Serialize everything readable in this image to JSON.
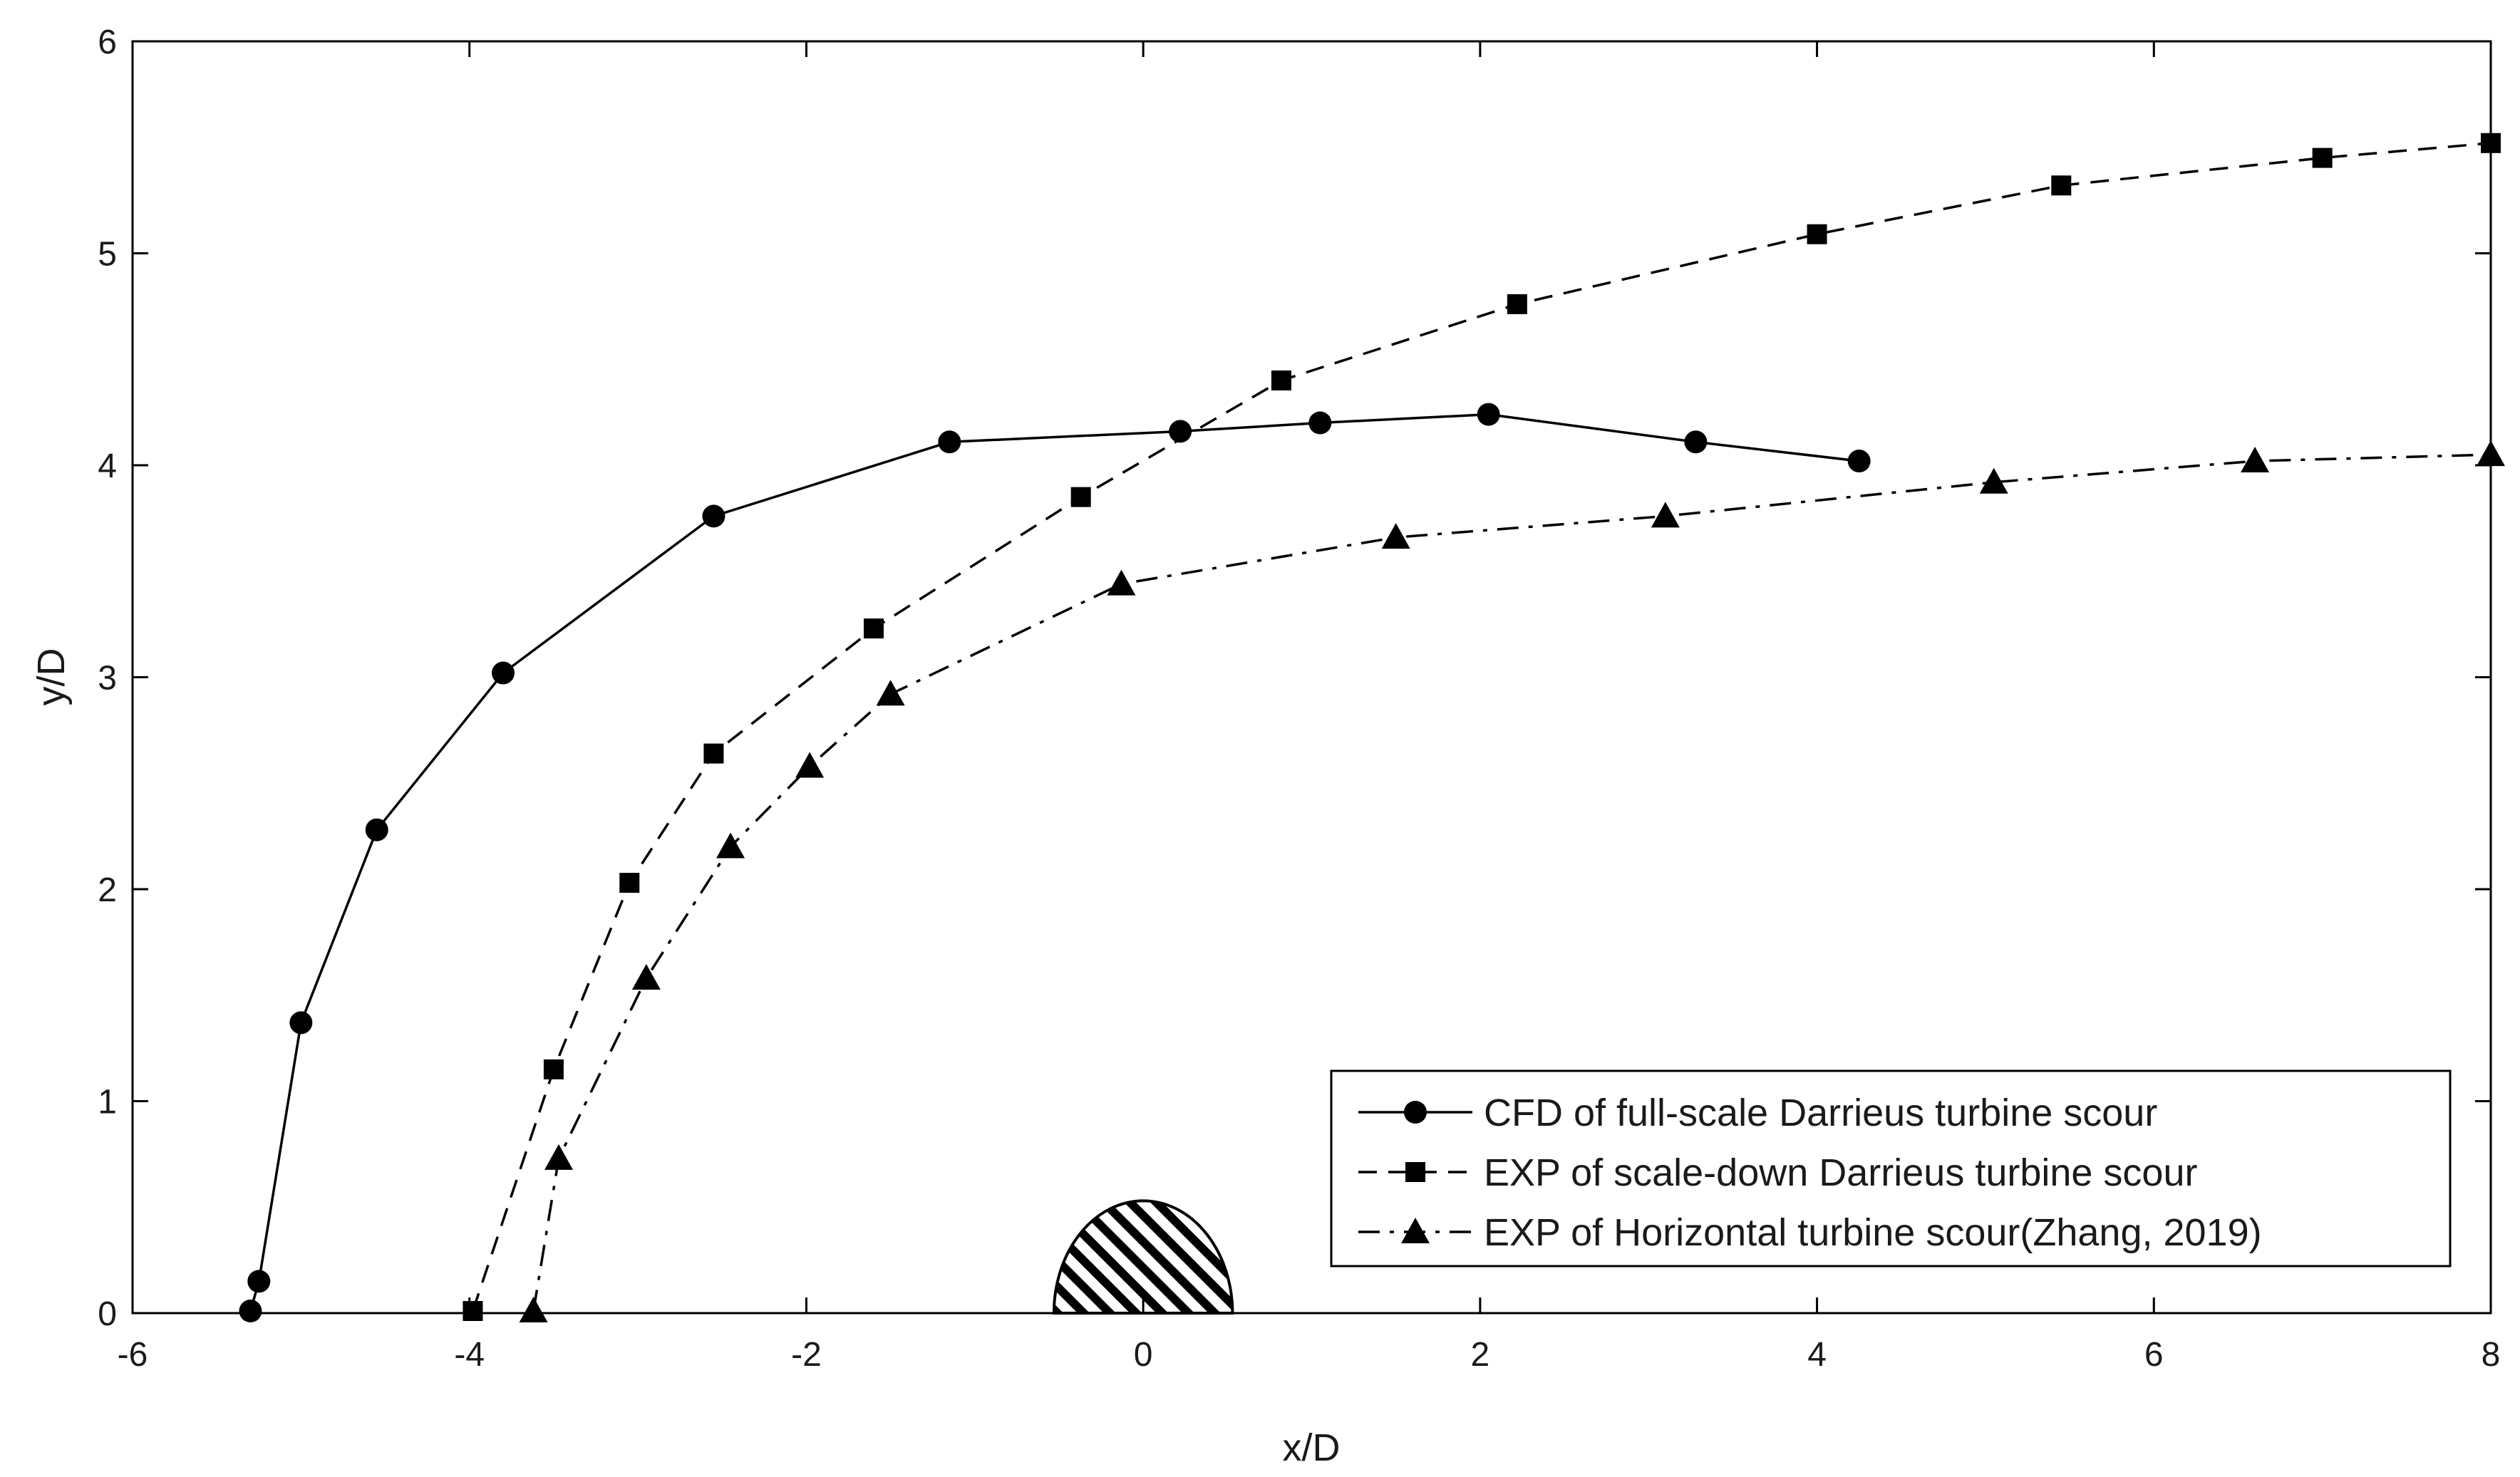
{
  "chart_data": {
    "type": "line",
    "title": "",
    "xlabel": "x/D",
    "ylabel": "y/D",
    "xlim": [
      -6,
      8
    ],
    "ylim": [
      0,
      6
    ],
    "xticks": [
      -6,
      -4,
      -2,
      0,
      2,
      4,
      6,
      8
    ],
    "yticks": [
      0,
      1,
      2,
      3,
      4,
      5,
      6
    ],
    "xtick_labels": [
      "-6",
      "-4",
      "-2",
      "0",
      "2",
      "4",
      "6",
      "8"
    ],
    "ytick_labels": [
      "0",
      "1",
      "2",
      "3",
      "4",
      "5",
      "6"
    ],
    "grid": false,
    "legend_position": "bottom-right",
    "series": [
      {
        "name": "CFD of full-scale Darrieus turbine scour",
        "marker": "circle",
        "line_style": "solid",
        "color": "#000000",
        "x": [
          -5.3,
          -5.25,
          -5.0,
          -4.55,
          -3.8,
          -2.55,
          -1.15,
          0.22,
          1.05,
          2.05,
          3.28,
          4.25
        ],
        "y": [
          0.01,
          0.15,
          1.37,
          2.28,
          3.02,
          3.76,
          4.11,
          4.16,
          4.2,
          4.24,
          4.11,
          4.02
        ]
      },
      {
        "name": "EXP of scale-down Darrieus turbine scour",
        "marker": "square",
        "line_style": "dashed",
        "color": "#000000",
        "x": [
          -3.98,
          -3.5,
          -3.05,
          -2.55,
          -1.6,
          -0.37,
          0.82,
          2.22,
          4.0,
          5.45,
          7.0,
          8.0
        ],
        "y": [
          0.01,
          1.15,
          2.03,
          2.64,
          3.23,
          3.85,
          4.4,
          4.76,
          5.09,
          5.32,
          5.45,
          5.52
        ]
      },
      {
        "name": "EXP of Horizontal turbine scour(Zhang, 2019)",
        "marker": "triangle",
        "line_style": "dashdot",
        "color": "#000000",
        "x": [
          -3.62,
          -3.47,
          -2.95,
          -2.45,
          -1.98,
          -1.5,
          -0.13,
          1.5,
          3.1,
          5.05,
          6.6,
          8.0
        ],
        "y": [
          0.01,
          0.73,
          1.58,
          2.2,
          2.58,
          2.92,
          3.44,
          3.66,
          3.76,
          3.92,
          4.02,
          4.05
        ]
      }
    ],
    "annotations": [
      {
        "shape": "hatched-semicircle",
        "center_x": 0.0,
        "center_y": 0.0,
        "radius": 0.53
      }
    ]
  }
}
